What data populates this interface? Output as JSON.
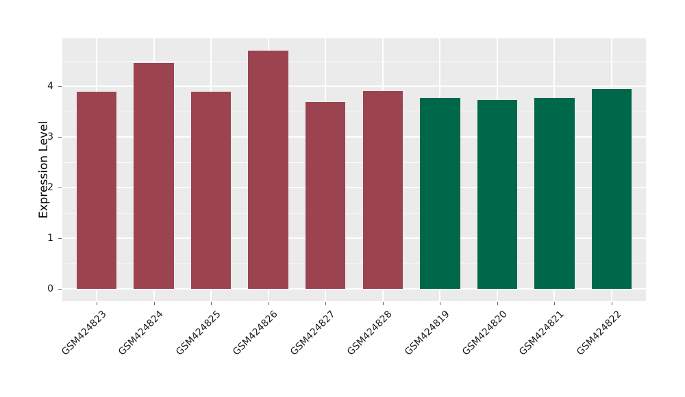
{
  "figure": {
    "background": "#FFFFFF",
    "panel_background": "#EBEBEB",
    "grid_color": "#FFFFFF",
    "tick_color": "#666666",
    "text_color": "#1A1A1A"
  },
  "chart_data": {
    "type": "bar",
    "title": "",
    "xlabel": "",
    "ylabel": "Expression Level",
    "categories": [
      "GSM424823",
      "GSM424824",
      "GSM424825",
      "GSM424826",
      "GSM424827",
      "GSM424828",
      "GSM424819",
      "GSM424820",
      "GSM424821",
      "GSM424822"
    ],
    "values": [
      3.89,
      4.46,
      3.89,
      4.7,
      3.69,
      3.91,
      3.78,
      3.73,
      3.78,
      3.95
    ],
    "bar_colors": [
      "#9B4450",
      "#9B4450",
      "#9B4450",
      "#9B4450",
      "#9B4450",
      "#9B4450",
      "#00684A",
      "#00684A",
      "#00684A",
      "#00684A"
    ],
    "color_groups": [
      {
        "color": "#9B4450",
        "categories": [
          "GSM424823",
          "GSM424824",
          "GSM424825",
          "GSM424826",
          "GSM424827",
          "GSM424828"
        ]
      },
      {
        "color": "#00684A",
        "categories": [
          "GSM424819",
          "GSM424820",
          "GSM424821",
          "GSM424822"
        ]
      }
    ],
    "ylim": [
      -0.24,
      4.95
    ],
    "yticks": [
      0,
      1,
      2,
      3,
      4
    ],
    "yticks_minor": [
      0.5,
      1.5,
      2.5,
      3.5,
      4.5
    ],
    "grid": true,
    "legend": "none",
    "x_tick_rotation": 45,
    "bar_width_ratio": 0.7
  }
}
